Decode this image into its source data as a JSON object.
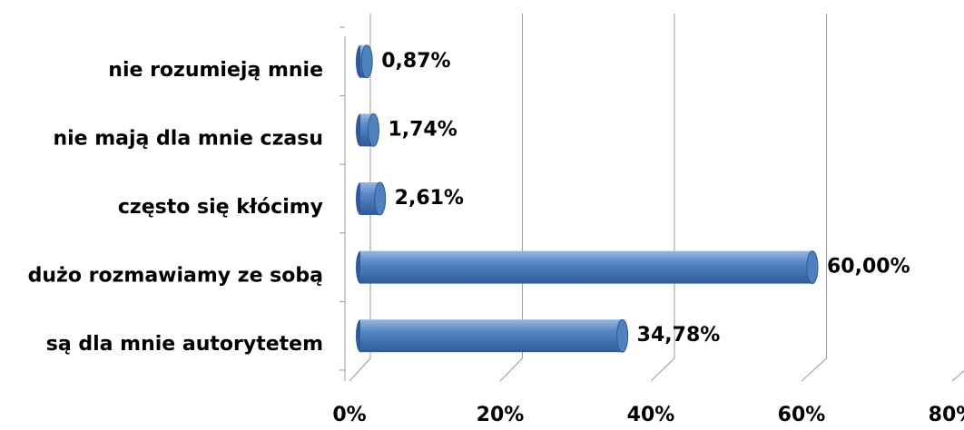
{
  "chart_data": {
    "type": "bar",
    "orientation": "horizontal",
    "categories": [
      "nie rozumieją mnie",
      "nie mają dla mnie czasu",
      "często się kłócimy",
      "dużo rozmawiamy ze sobą",
      "są dla mnie autorytetem"
    ],
    "values": [
      0.87,
      1.74,
      2.61,
      60.0,
      34.78
    ],
    "value_labels": [
      "0,87%",
      "1,74%",
      "2,61%",
      "60,00%",
      "34,78%"
    ],
    "color": "#4f81bd",
    "xlim": [
      0,
      80
    ],
    "xticks": [
      {
        "value": 0,
        "label": "0%"
      },
      {
        "value": 20,
        "label": "20%"
      },
      {
        "value": 40,
        "label": "40%"
      },
      {
        "value": 60,
        "label": "60%"
      },
      {
        "value": 80,
        "label": "80%"
      }
    ],
    "grid": true
  }
}
